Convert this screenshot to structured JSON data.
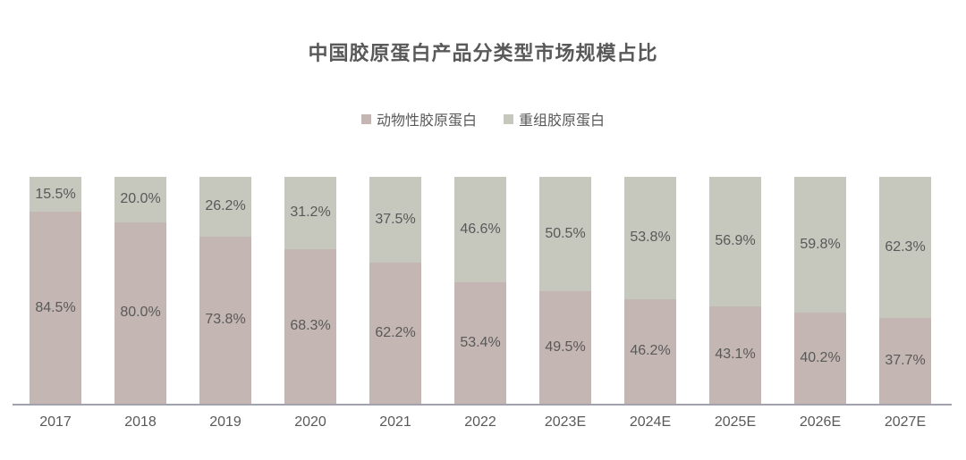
{
  "chart": {
    "title": "中国胶原蛋白产品分类型市场规模占比"
  },
  "chart_data": {
    "type": "bar",
    "stacked": true,
    "orientation": "vertical",
    "title": "中国胶原蛋白产品分类型市场规模占比",
    "categories": [
      "2017",
      "2018",
      "2019",
      "2020",
      "2021",
      "2022",
      "2023E",
      "2024E",
      "2025E",
      "2026E",
      "2027E"
    ],
    "series": [
      {
        "name": "动物性胶原蛋白",
        "color": "#c4b6b2",
        "position": "bottom",
        "values": [
          84.5,
          80.0,
          73.8,
          68.3,
          62.2,
          53.4,
          49.5,
          46.2,
          43.1,
          40.2,
          37.7
        ],
        "labels": [
          "84.5%",
          "80.0%",
          "73.8%",
          "68.3%",
          "62.2%",
          "53.4%",
          "49.5%",
          "46.2%",
          "43.1%",
          "40.2%",
          "37.7%"
        ]
      },
      {
        "name": "重组胶原蛋白",
        "color": "#c6c7bd",
        "position": "top",
        "values": [
          15.5,
          20.0,
          26.2,
          31.2,
          37.5,
          46.6,
          50.5,
          53.8,
          56.9,
          59.8,
          62.3
        ],
        "labels": [
          "15.5%",
          "20.0%",
          "26.2%",
          "31.2%",
          "37.5%",
          "46.6%",
          "50.5%",
          "53.8%",
          "56.9%",
          "59.8%",
          "62.3%"
        ]
      }
    ],
    "ylim": [
      0,
      100
    ],
    "value_suffix": "%",
    "grid": false,
    "legend_position": "top",
    "label_color": "#595959",
    "axis_line_color": "#a0a2ae",
    "background": "#ffffff"
  }
}
